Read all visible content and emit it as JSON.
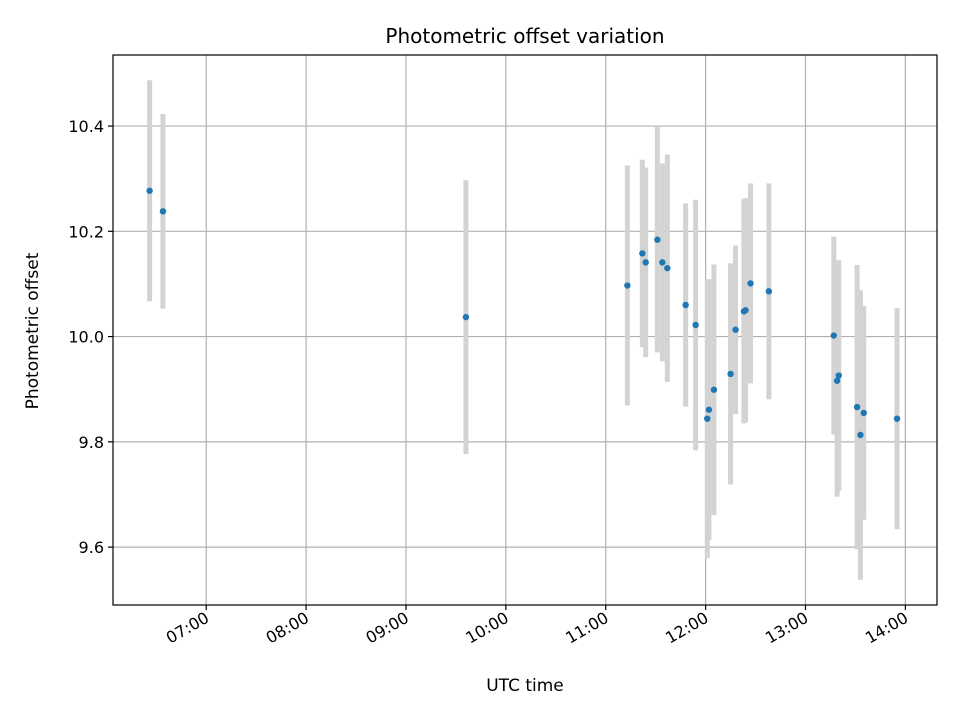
{
  "chart_data": {
    "type": "scatter",
    "title": "Photometric offset variation",
    "xlabel": "UTC time",
    "ylabel": "Photometric offset",
    "xlim": [
      "06:04",
      "14:19"
    ],
    "ylim": [
      9.49,
      10.535
    ],
    "grid": true,
    "x_ticks": [
      "07:00",
      "08:00",
      "09:00",
      "10:00",
      "11:00",
      "12:00",
      "13:00",
      "14:00"
    ],
    "y_ticks": [
      9.6,
      9.8,
      10.0,
      10.2,
      10.4
    ],
    "y_tick_labels": [
      "9.6",
      "9.8",
      "10.0",
      "10.2",
      "10.4"
    ],
    "colors": {
      "points": "#1f77b4",
      "error_bars": "#d3d3d3"
    },
    "points": [
      {
        "x": "06:26",
        "y": 10.277,
        "err": 0.21
      },
      {
        "x": "06:34",
        "y": 10.238,
        "err": 0.185
      },
      {
        "x": "09:36",
        "y": 10.037,
        "err": 0.26
      },
      {
        "x": "11:13",
        "y": 10.097,
        "err": 0.228
      },
      {
        "x": "11:22",
        "y": 10.158,
        "err": 0.178
      },
      {
        "x": "11:24",
        "y": 10.141,
        "err": 0.18
      },
      {
        "x": "11:31",
        "y": 10.184,
        "err": 0.214
      },
      {
        "x": "11:34",
        "y": 10.141,
        "err": 0.188
      },
      {
        "x": "11:37",
        "y": 10.13,
        "err": 0.216
      },
      {
        "x": "11:48",
        "y": 10.06,
        "err": 0.193
      },
      {
        "x": "11:54",
        "y": 10.022,
        "err": 0.238
      },
      {
        "x": "12:01",
        "y": 9.844,
        "err": 0.265
      },
      {
        "x": "12:02",
        "y": 9.861,
        "err": 0.248
      },
      {
        "x": "12:05",
        "y": 9.899,
        "err": 0.238
      },
      {
        "x": "12:15",
        "y": 9.929,
        "err": 0.21
      },
      {
        "x": "12:18",
        "y": 10.013,
        "err": 0.16
      },
      {
        "x": "12:23",
        "y": 10.048,
        "err": 0.213
      },
      {
        "x": "12:24",
        "y": 10.05,
        "err": 0.213
      },
      {
        "x": "12:27",
        "y": 10.101,
        "err": 0.19
      },
      {
        "x": "12:38",
        "y": 10.086,
        "err": 0.205
      },
      {
        "x": "13:17",
        "y": 10.002,
        "err": 0.188
      },
      {
        "x": "13:19",
        "y": 9.916,
        "err": 0.22
      },
      {
        "x": "13:20",
        "y": 9.926,
        "err": 0.219
      },
      {
        "x": "13:31",
        "y": 9.866,
        "err": 0.27
      },
      {
        "x": "13:33",
        "y": 9.813,
        "err": 0.275
      },
      {
        "x": "13:35",
        "y": 9.855,
        "err": 0.203
      },
      {
        "x": "13:55",
        "y": 9.844,
        "err": 0.21
      }
    ]
  }
}
